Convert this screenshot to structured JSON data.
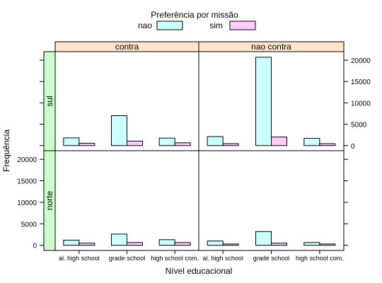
{
  "chart_data": {
    "type": "bar",
    "legend_title": "Preferência por missão",
    "legend_position": "top",
    "series": [
      {
        "name": "nao",
        "color": "#ccffff"
      },
      {
        "name": "sim",
        "color": "#ffccff"
      }
    ],
    "categories": [
      "al. high school",
      "grade school",
      "high school com."
    ],
    "column_strips": [
      "contra",
      "nao contra"
    ],
    "row_strips": [
      "sul",
      "norte"
    ],
    "strip_colors": {
      "column": "#ffe5cc",
      "row": "#ccffcc"
    },
    "xlabel": "Nível educacional",
    "ylabel": "Frequência",
    "ylim": [
      -1200,
      22000
    ],
    "yticks": [
      0,
      5000,
      10000,
      15000,
      20000
    ],
    "ytick_labels": [
      "0",
      "5000",
      "10000",
      "15000",
      "20000"
    ],
    "grid": false,
    "panels": [
      {
        "row": "sul",
        "column": "contra",
        "nao": [
          1800,
          7000,
          1750
        ],
        "sim": [
          550,
          1050,
          650
        ]
      },
      {
        "row": "sul",
        "column": "nao contra",
        "nao": [
          2100,
          20700,
          1700
        ],
        "sim": [
          450,
          2000,
          450
        ]
      },
      {
        "row": "norte",
        "column": "contra",
        "nao": [
          1200,
          2600,
          1300
        ],
        "sim": [
          500,
          650,
          650
        ]
      },
      {
        "row": "norte",
        "column": "nao contra",
        "nao": [
          1000,
          3200,
          650
        ],
        "sim": [
          300,
          500,
          300
        ]
      }
    ]
  }
}
